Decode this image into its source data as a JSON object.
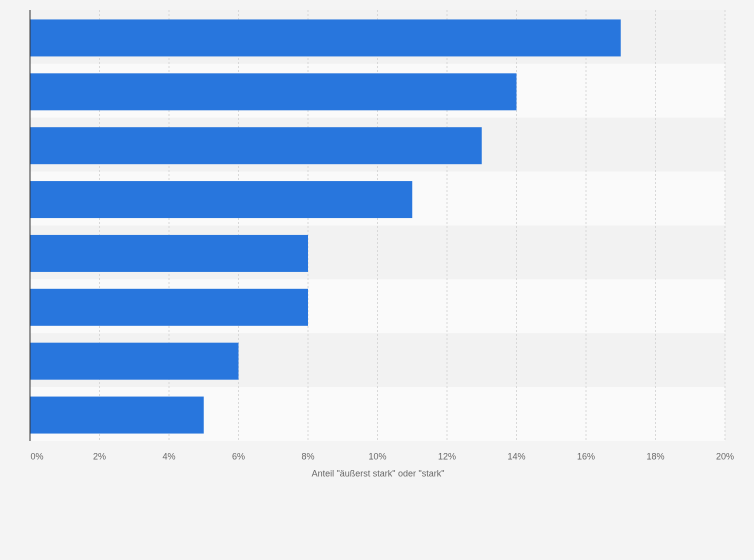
{
  "chart_data": {
    "type": "bar",
    "orientation": "horizontal",
    "categories": [
      null,
      null,
      null,
      null,
      null,
      null,
      null,
      null
    ],
    "values": [
      17,
      14,
      13,
      11,
      8,
      8,
      6,
      5
    ],
    "color": "#2876dd",
    "xlabel": "Anteil \"äußerst stark\" oder \"stark\"",
    "xlim": [
      0,
      20
    ],
    "xticks": [
      {
        "value": 0,
        "label": "0%"
      },
      {
        "value": 2,
        "label": "2%"
      },
      {
        "value": 4,
        "label": "4%"
      },
      {
        "value": 6,
        "label": "6%"
      },
      {
        "value": 8,
        "label": "8%"
      },
      {
        "value": 10,
        "label": "10%"
      },
      {
        "value": 12,
        "label": "12%"
      },
      {
        "value": 14,
        "label": "14%"
      },
      {
        "value": 16,
        "label": "16%"
      },
      {
        "value": 18,
        "label": "18%"
      },
      {
        "value": 20,
        "label": "20%"
      }
    ],
    "grid": true
  }
}
